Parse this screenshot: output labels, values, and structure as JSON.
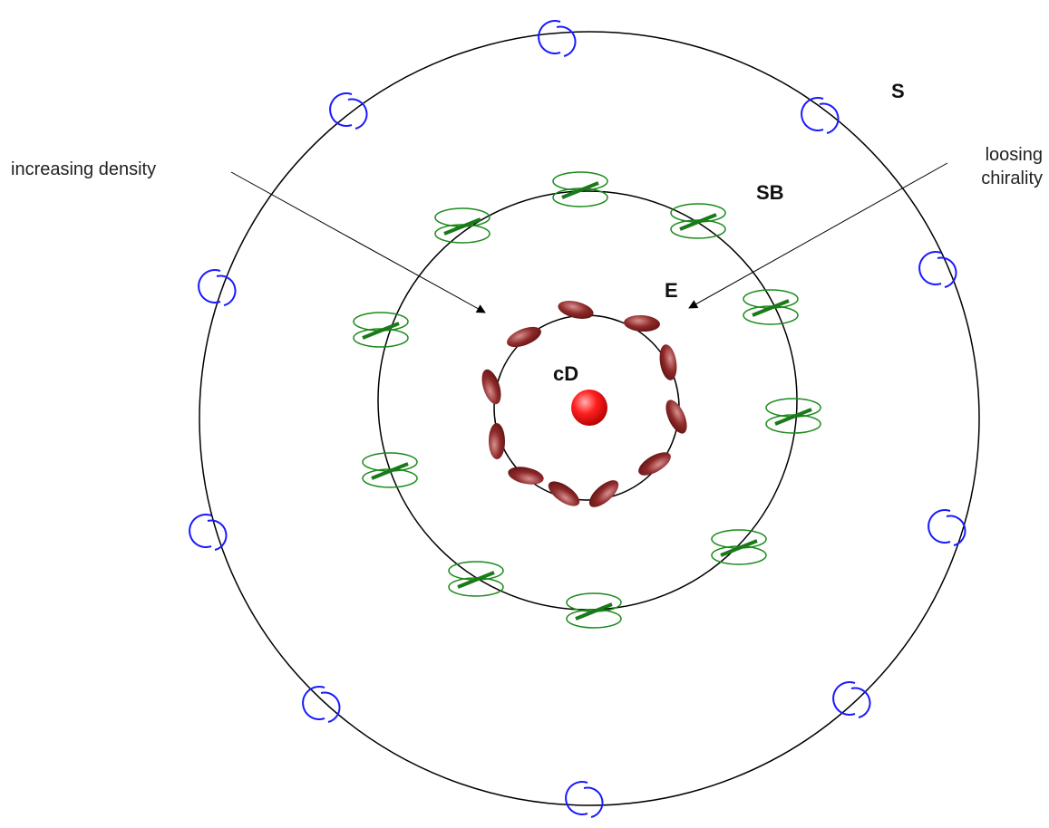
{
  "labels": {
    "increasing_density": "increasing density",
    "loosing_chirality": [
      "loosing",
      "chirality"
    ],
    "S": "S",
    "SB": "SB",
    "E": "E",
    "cD": "cD"
  }
}
